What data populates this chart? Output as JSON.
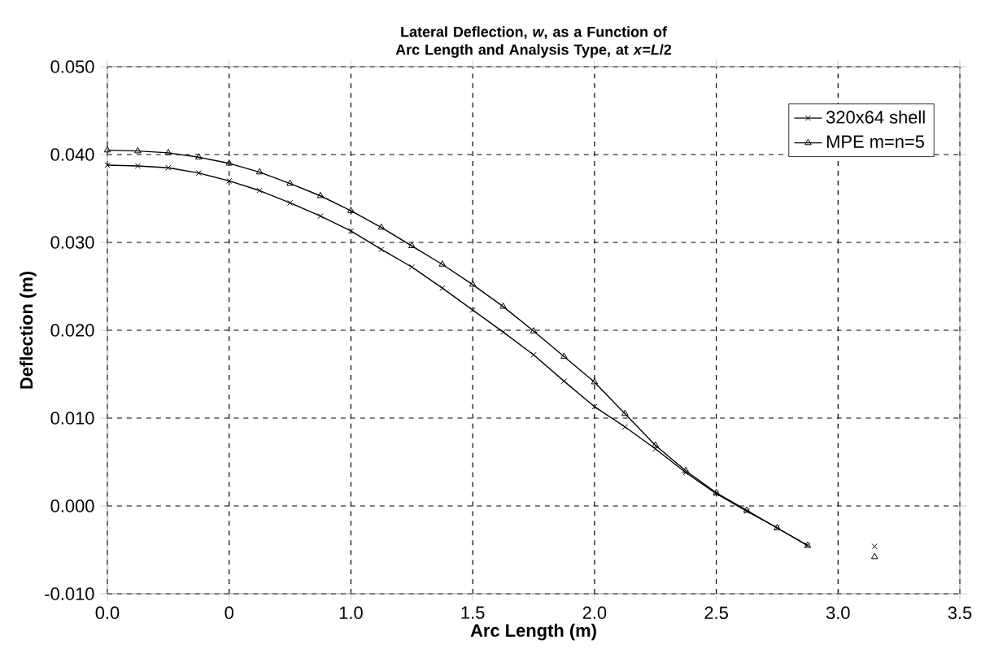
{
  "chart_data": {
    "type": "line",
    "title": "Lateral Deflection, *w*, as a Function of Arc Length and Analysis Type, at *x*=*L*/2",
    "xlabel": "Arc Length (m)",
    "ylabel": "Deflection (m)",
    "series": [
      {
        "name": "320x64 shell",
        "color": "#000000",
        "marker": "cross",
        "x": [
          0,
          0.125,
          0.25,
          0.375,
          0.5,
          0.625,
          0.75,
          0.875,
          1.0,
          1.125,
          1.25,
          1.375,
          1.5,
          1.625,
          1.75,
          1.875,
          2.0,
          2.125,
          2.25,
          2.375,
          2.5,
          2.625,
          2.75,
          2.875,
          3.0,
          3.15
        ],
        "values": [
          0.0388,
          0.0387,
          0.0385,
          0.0379,
          0.037,
          0.0359,
          0.0345,
          0.033,
          0.0313,
          0.0292,
          0.0272,
          0.0248,
          0.0223,
          0.0198,
          0.0172,
          0.0142,
          0.0113,
          0.009,
          0.0065,
          0.0038,
          0.0014,
          -0.0006,
          -0.0025,
          -0.0045,
          null,
          -0.0046
        ]
      },
      {
        "name": "MPE m=n=5",
        "color": "#000000",
        "marker": "triangle",
        "x": [
          0,
          0.125,
          0.25,
          0.375,
          0.5,
          0.625,
          0.75,
          0.875,
          1.0,
          1.125,
          1.25,
          1.375,
          1.5,
          1.625,
          1.75,
          1.875,
          2.0,
          2.125,
          2.25,
          2.375,
          2.5,
          2.625,
          2.75,
          2.875,
          3.0,
          3.15
        ],
        "values": [
          0.0405,
          0.0404,
          0.0402,
          0.0397,
          0.039,
          0.038,
          0.0367,
          0.0353,
          0.0336,
          0.0317,
          0.0296,
          0.0275,
          0.0252,
          0.0227,
          0.0199,
          0.017,
          0.0141,
          0.0105,
          0.0069,
          0.004,
          0.0015,
          -0.0005,
          -0.0025,
          -0.0045,
          null,
          -0.0058
        ]
      }
    ],
    "xlim": [
      0,
      3.5
    ],
    "ylim": [
      -0.01,
      0.05
    ],
    "xticks": [
      {
        "value": 0,
        "label": "0.0"
      },
      {
        "value": 0.5,
        "label": "0"
      },
      {
        "value": 1.0,
        "label": "1.0"
      },
      {
        "value": 1.5,
        "label": "1.5"
      },
      {
        "value": 2.0,
        "label": "2.0"
      },
      {
        "value": 2.5,
        "label": "2.5"
      },
      {
        "value": 3.0,
        "label": "3.0"
      },
      {
        "value": 3.5,
        "label": "3.5"
      }
    ],
    "yticks": [
      {
        "value": -0.01,
        "label": "-0.010"
      },
      {
        "value": 0,
        "label": "0.000"
      },
      {
        "value": 0.01,
        "label": "0.010"
      },
      {
        "value": 0.02,
        "label": "0.020"
      },
      {
        "value": 0.03,
        "label": "0.030"
      },
      {
        "value": 0.04,
        "label": "0.040"
      },
      {
        "value": 0.05,
        "label": "0.050"
      }
    ],
    "grid": true,
    "legend": "top right"
  }
}
